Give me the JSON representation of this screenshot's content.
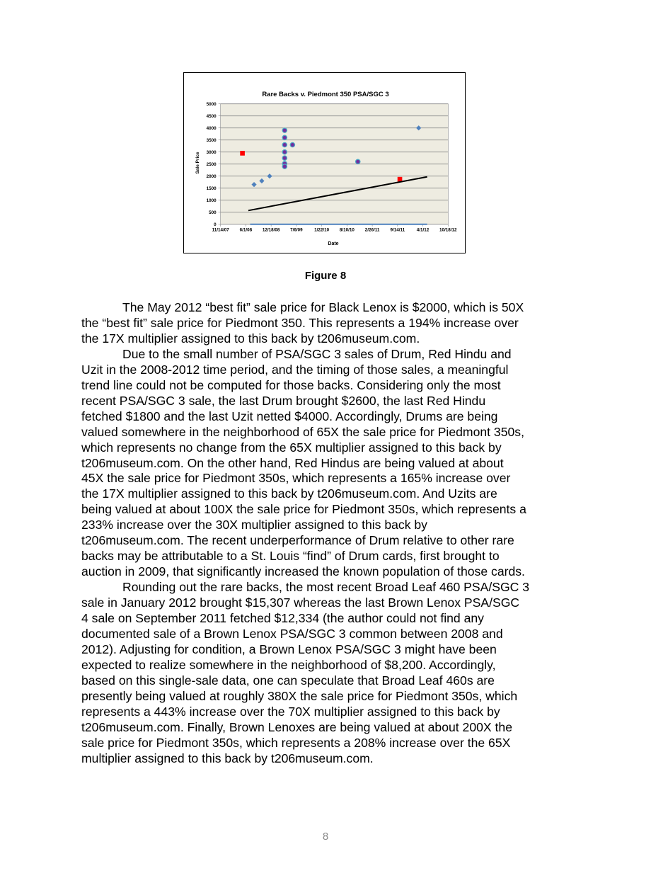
{
  "figure_caption": "Figure 8",
  "chart_data": {
    "type": "scatter",
    "title": "Rare Backs v. Piedmont 350 PSA/SGC 3",
    "xlabel": "Date",
    "ylabel": "Sale Price",
    "xlim": [
      "11/14/07",
      "10/18/12"
    ],
    "ylim": [
      0,
      5000
    ],
    "x_tick_labels": [
      "11/14/07",
      "6/1/08",
      "12/18/08",
      "7/6/09",
      "1/22/10",
      "8/10/10",
      "2/26/11",
      "9/14/11",
      "4/1/12",
      "10/18/12"
    ],
    "y_tick_labels": [
      "0",
      "500",
      "1000",
      "1500",
      "2000",
      "2500",
      "3000",
      "3500",
      "4000",
      "4500",
      "5000"
    ],
    "grid": true,
    "legend": "none",
    "plot_background": "#eeece1",
    "series": [
      {
        "marker": "square",
        "color": "#ff0000",
        "points": [
          [
            "2008-05-05",
            2950
          ],
          [
            "2011-10-02",
            1870
          ]
        ]
      },
      {
        "marker": "diamond",
        "color": "#4f81bd",
        "points": [
          [
            "2008-08-05",
            1650
          ],
          [
            "2008-10-05",
            1800
          ],
          [
            "2008-12-06",
            2000
          ],
          [
            "2012-02-28",
            4000
          ]
        ]
      },
      {
        "marker": "circle",
        "color": "#7030a0",
        "edge": "#4bacc6",
        "points": [
          [
            "2009-04-04",
            3900
          ],
          [
            "2009-04-04",
            3600
          ],
          [
            "2009-04-04",
            3300
          ],
          [
            "2009-04-04",
            3000
          ],
          [
            "2009-04-04",
            2750
          ],
          [
            "2009-04-04",
            2520
          ],
          [
            "2009-04-04",
            2400
          ],
          [
            "2009-06-05",
            3300
          ],
          [
            "2010-11-04",
            2600
          ]
        ]
      },
      {
        "marker": "line",
        "color": "#000000",
        "points": [
          [
            "2008-06-21",
            570
          ],
          [
            "2012-05-05",
            1970
          ]
        ]
      },
      {
        "marker": "line",
        "color": "#4f81bd",
        "points": [
          [
            "2008-07-05",
            0
          ],
          [
            "2012-05-05",
            0
          ]
        ]
      }
    ]
  },
  "paragraphs": [
    {
      "lines": [
        "The May 2012 “best fit” sale price for Black Lenox is $2000, which is 50X",
        "the “best fit” sale price for Piedmont 350.  This represents a 194% increase over",
        "the 17X multiplier assigned to this back by t206museum.com."
      ]
    },
    {
      "lines": [
        "Due to the small number of PSA/SGC 3 sales of Drum, Red Hindu and",
        "Uzit in the 2008-2012 time period, and the timing of those sales, a meaningful",
        "trend line could not be computed for those backs.  Considering only the most",
        "recent PSA/SGC 3 sale, the last Drum brought $2600, the last Red Hindu",
        "fetched $1800 and the last Uzit netted $4000.  Accordingly, Drums are being",
        "valued somewhere in the neighborhood of 65X the sale price for Piedmont 350s,",
        "which represents no change from the 65X multiplier assigned to this back by",
        "t206museum.com.  On the other hand, Red Hindus are being valued at about",
        "45X the sale price for Piedmont 350s, which represents a 165% increase over",
        "the 17X multiplier assigned to this back by t206museum.com.  And Uzits are",
        "being valued at about 100X the sale price for Piedmont 350s, which represents a",
        "233% increase over the 30X multiplier assigned to this back by",
        "t206museum.com.  The recent underperformance of Drum relative to other rare",
        "backs may be attributable to a St. Louis “find” of Drum cards, first brought to",
        "auction in 2009, that significantly increased the known population of those cards."
      ]
    },
    {
      "lines": [
        "Rounding out the rare backs, the most recent Broad Leaf 460 PSA/SGC 3",
        "sale in January 2012 brought $15,307 whereas the last Brown Lenox PSA/SGC",
        "4 sale on September 2011 fetched $12,334 (the author could not find any",
        "documented sale of a Brown Lenox PSA/SGC 3 common between 2008 and",
        "2012).  Adjusting for condition, a Brown Lenox PSA/SGC 3 might have been",
        "expected to realize somewhere in the neighborhood of $8,200.  Accordingly,",
        "based on this single-sale data, one can speculate that Broad Leaf 460s are",
        "presently being valued at roughly 380X the sale price for Piedmont 350s, which",
        "represents a 443% increase over the 70X multiplier assigned to this back by",
        "t206museum.com.  Finally, Brown Lenoxes are being valued at about 200X the",
        "sale price for Piedmont 350s, which represents a 208% increase over the 65X",
        "multiplier assigned to this back by t206museum.com."
      ]
    }
  ],
  "page_number": "8"
}
